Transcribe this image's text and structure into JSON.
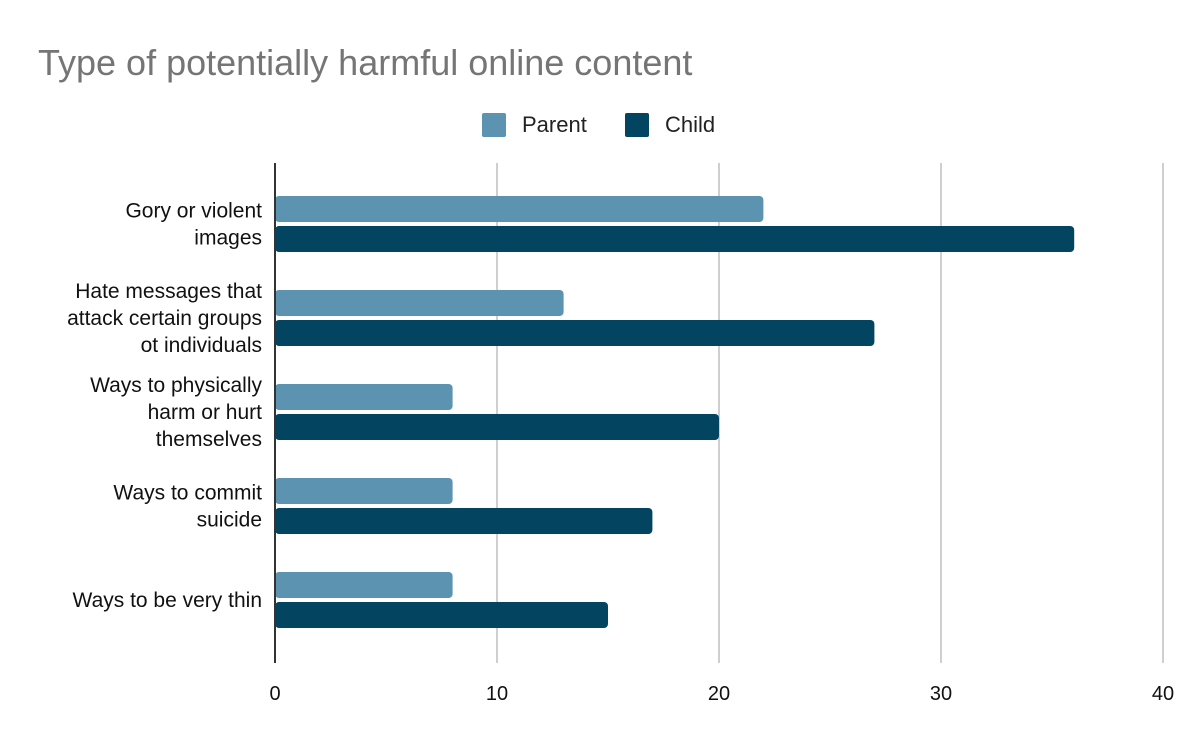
{
  "chart_data": {
    "type": "bar",
    "orientation": "horizontal",
    "title": "Type of potentially harmful online content",
    "xlabel": "",
    "ylabel": "",
    "xlim": [
      0,
      40
    ],
    "x_ticks": [
      "0",
      "10",
      "20",
      "30",
      "40"
    ],
    "grid": true,
    "legend_position": "top-center",
    "categories": [
      [
        "Gory or violent",
        "images"
      ],
      [
        "Hate messages that",
        "attack certain groups",
        "ot individuals"
      ],
      [
        "Ways to physically",
        "harm or hurt",
        "themselves"
      ],
      [
        "Ways to commit",
        "suicide"
      ],
      [
        "Ways to be very thin"
      ]
    ],
    "series": [
      {
        "name": "Parent",
        "color": "#5b93b0",
        "values": [
          22,
          13,
          8,
          8,
          8
        ]
      },
      {
        "name": "Child",
        "color": "#034561",
        "values": [
          36,
          27,
          20,
          17,
          15
        ]
      }
    ]
  }
}
